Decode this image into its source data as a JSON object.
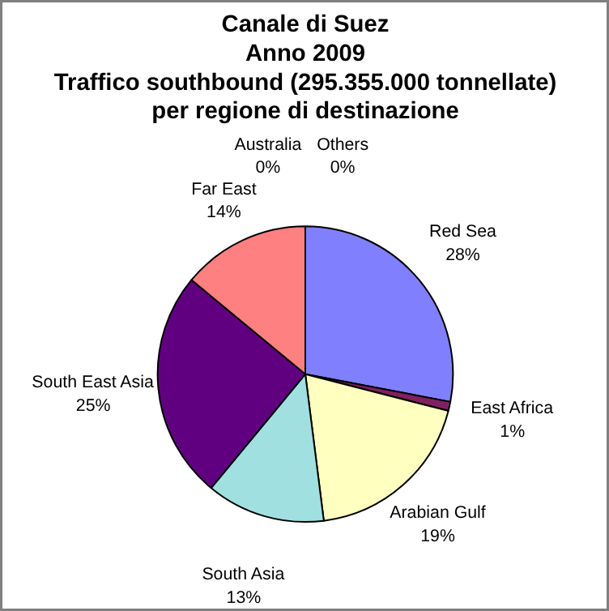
{
  "chart_data": {
    "type": "pie",
    "title": "Canale di Suez\nAnno 2009\nTraffico southbound (295.355.000 tonnellate)\nper regione di destinazione",
    "categories": [
      "Red Sea",
      "East Africa",
      "Arabian Gulf",
      "South Asia",
      "South East Asia",
      "Far East",
      "Australia",
      "Others"
    ],
    "values": [
      28,
      1,
      19,
      13,
      25,
      14,
      0,
      0
    ],
    "colors": [
      "#8080ff",
      "#802060",
      "#ffffc0",
      "#a0e0e0",
      "#600080",
      "#ff8080",
      "#0066cc",
      "#c0c0ff"
    ],
    "value_labels": [
      "28%",
      "1%",
      "19%",
      "13%",
      "25%",
      "14%",
      "0%",
      "0%"
    ]
  }
}
